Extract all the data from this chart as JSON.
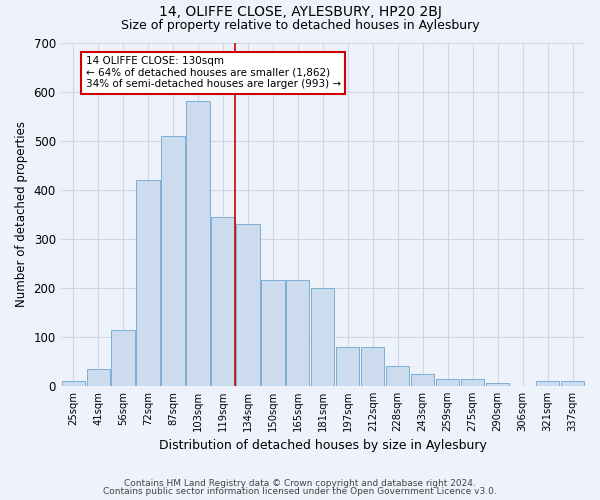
{
  "title1": "14, OLIFFE CLOSE, AYLESBURY, HP20 2BJ",
  "title2": "Size of property relative to detached houses in Aylesbury",
  "xlabel": "Distribution of detached houses by size in Aylesbury",
  "ylabel": "Number of detached properties",
  "categories": [
    "25sqm",
    "41sqm",
    "56sqm",
    "72sqm",
    "87sqm",
    "103sqm",
    "119sqm",
    "134sqm",
    "150sqm",
    "165sqm",
    "181sqm",
    "197sqm",
    "212sqm",
    "228sqm",
    "243sqm",
    "259sqm",
    "275sqm",
    "290sqm",
    "306sqm",
    "321sqm",
    "337sqm"
  ],
  "values": [
    10,
    35,
    115,
    420,
    510,
    580,
    345,
    330,
    215,
    215,
    200,
    80,
    80,
    40,
    25,
    15,
    15,
    5,
    0,
    10,
    10
  ],
  "bar_color": "#ccdcee",
  "bar_edge_color": "#7aafd4",
  "vline_color": "#cc0000",
  "vline_x": 6.48,
  "annotation_text": "14 OLIFFE CLOSE: 130sqm\n← 64% of detached houses are smaller (1,862)\n34% of semi-detached houses are larger (993) →",
  "annotation_box_color": "#ffffff",
  "annotation_box_edge_color": "#cc0000",
  "ylim": [
    0,
    700
  ],
  "yticks": [
    0,
    100,
    200,
    300,
    400,
    500,
    600,
    700
  ],
  "footer1": "Contains HM Land Registry data © Crown copyright and database right 2024.",
  "footer2": "Contains public sector information licensed under the Open Government Licence v3.0.",
  "bg_color": "#eef2fb",
  "plot_bg_color": "#eef2fb",
  "grid_color": "#cdd5e8"
}
